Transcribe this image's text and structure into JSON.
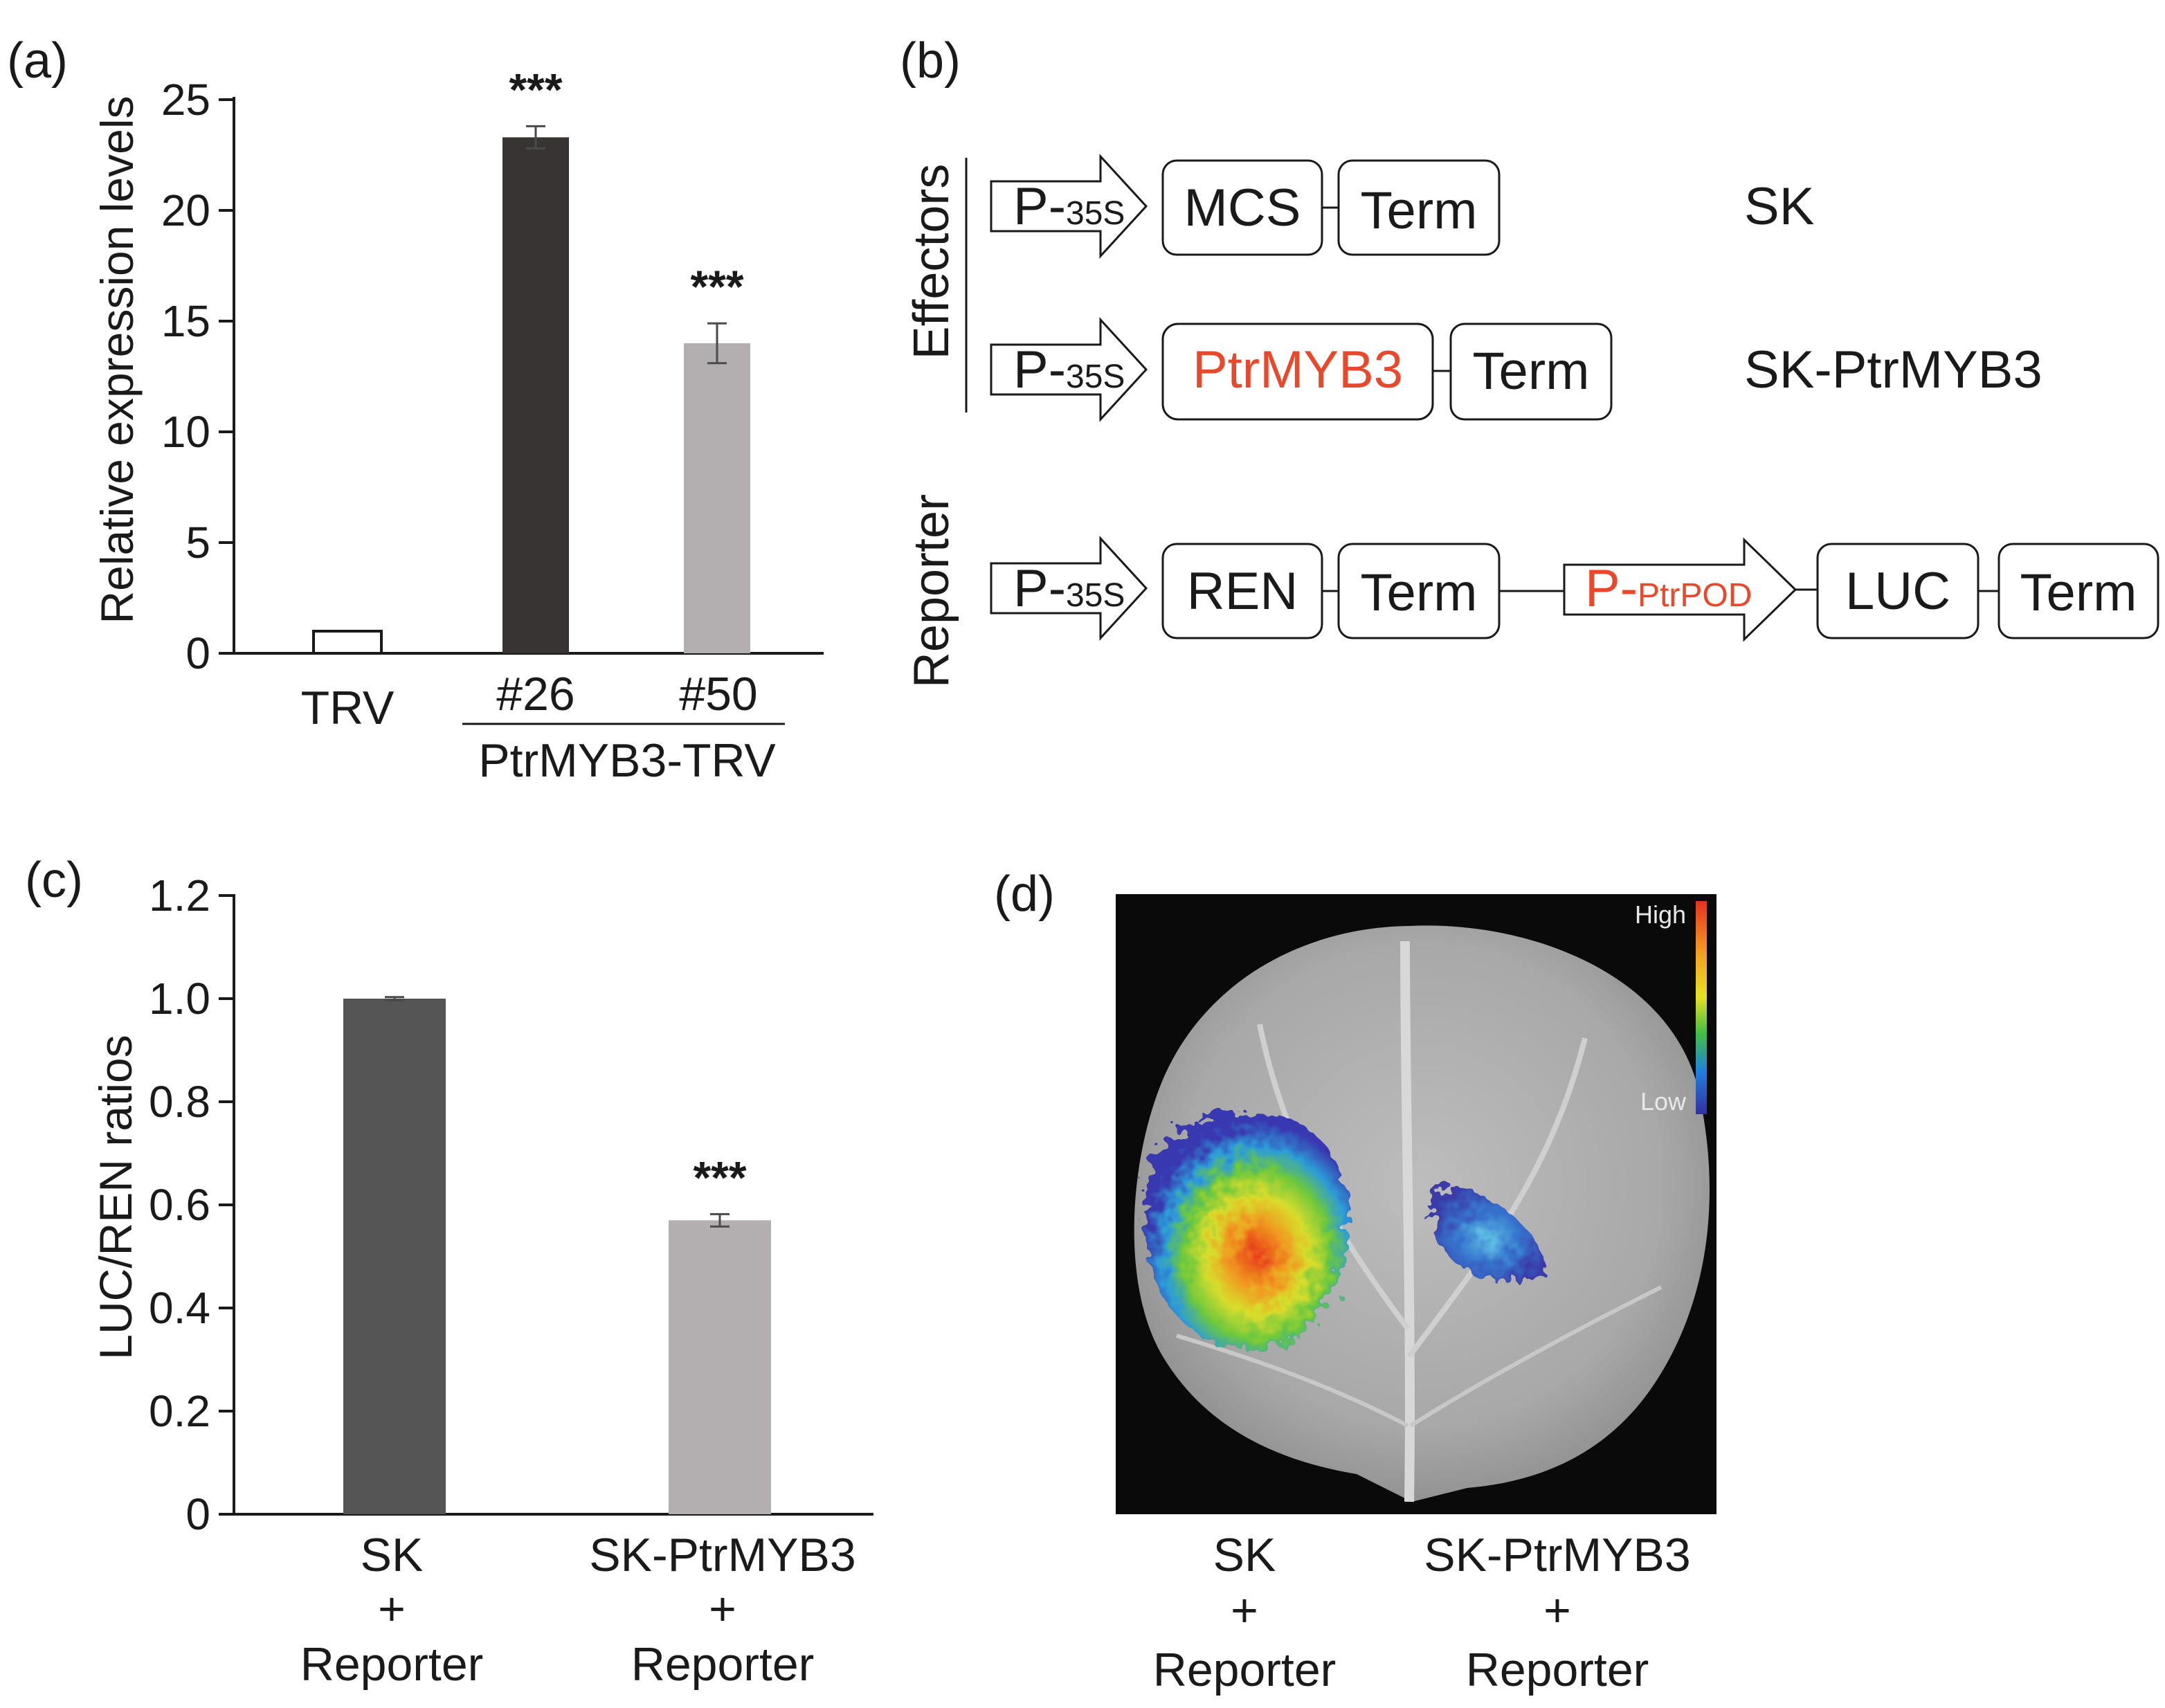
{
  "panels": {
    "a": "(a)",
    "b": "(b)",
    "c": "(c)",
    "d": "(d)"
  },
  "colors": {
    "dark_bar": "#383434",
    "gray_bar": "#b3afb0",
    "dark_bar_c": "#555555",
    "gray_bar_c": "#b3aeaf",
    "red_text": "#e8482b"
  },
  "chart_data": [
    {
      "type": "bar",
      "id": "a",
      "ylabel": "Relative expression levels",
      "ylim": [
        0,
        25
      ],
      "yticks": [
        "0",
        "5",
        "10",
        "15",
        "20",
        "25"
      ],
      "categories": [
        "TRV",
        "#26",
        "#50"
      ],
      "group_label": "PtrMYB3-TRV",
      "values": [
        1.0,
        23.3,
        14.0
      ],
      "errors": [
        0,
        0.5,
        0.9
      ],
      "significance": [
        "",
        "***",
        "***"
      ]
    },
    {
      "type": "bar",
      "id": "c",
      "ylabel": "LUC/REN ratios",
      "ylim": [
        0,
        1.2
      ],
      "yticks": [
        "0",
        "0.2",
        "0.4",
        "0.6",
        "0.8",
        "1.0",
        "1.2"
      ],
      "categories": [
        {
          "line1": "SK",
          "line2": "+",
          "line3": "Reporter"
        },
        {
          "line1": "SK-PtrMYB3",
          "line2": "+",
          "line3": "Reporter"
        }
      ],
      "values": [
        1.0,
        0.57
      ],
      "errors": [
        0.003,
        0.012
      ],
      "significance": [
        "",
        "***"
      ]
    }
  ],
  "diagram": {
    "effectors_label": "Effectors",
    "reporter_label": "Reporter",
    "promoter_prefix": "P-",
    "promoter_35s": "35S",
    "promoter_pod": "PtrPOD",
    "mcs": "MCS",
    "term": "Term",
    "ptrmyb3": "PtrMYB3",
    "ren": "REN",
    "luc": "LUC",
    "sk": "SK",
    "sk_ptrmyb3": "SK-PtrMYB3"
  },
  "image_panel": {
    "scale_high": "High",
    "scale_low": "Low",
    "left_label": {
      "line1": "SK",
      "line2": "+",
      "line3": "Reporter"
    },
    "right_label": {
      "line1": "SK-PtrMYB3",
      "line2": "+",
      "line3": "Reporter"
    }
  }
}
